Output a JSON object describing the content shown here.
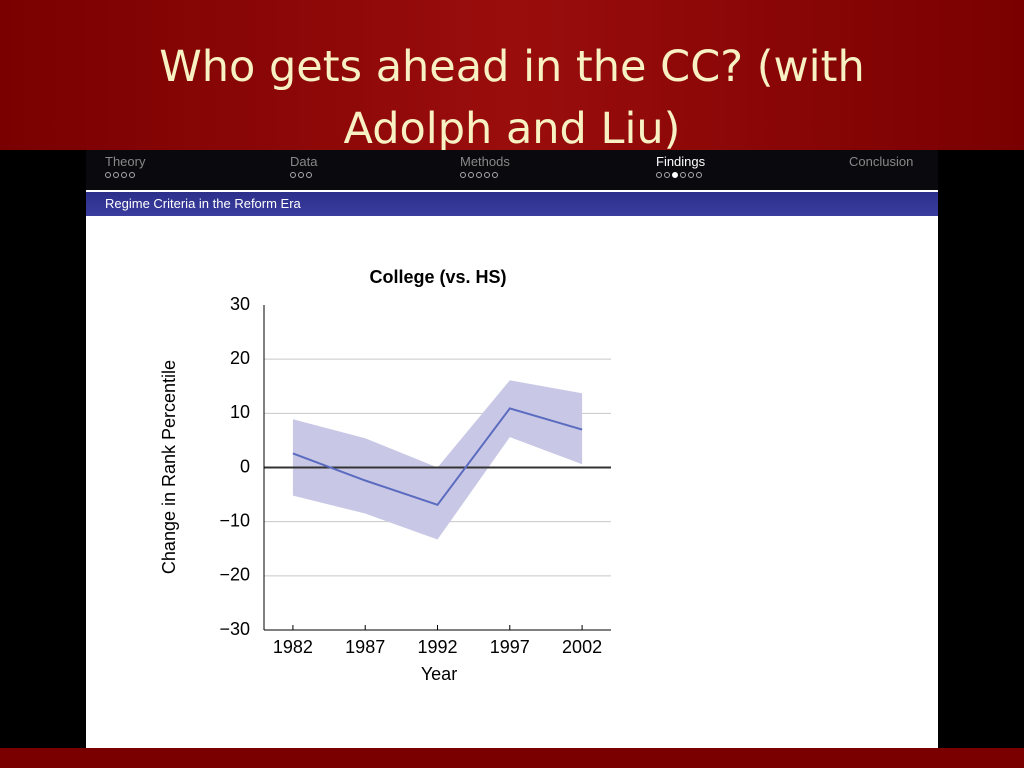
{
  "slide": {
    "title": "Who gets ahead in the CC? (with Adolph and Liu)"
  },
  "nav": {
    "sections": [
      {
        "name": "Theory",
        "dots": 4
      },
      {
        "name": "Data",
        "dots": 3
      },
      {
        "name": "Methods",
        "dots": 5
      },
      {
        "name": "Findings",
        "dots": 6
      },
      {
        "name": "Conclusion",
        "dots": 0
      }
    ],
    "active_section": 3,
    "active_dot": 2
  },
  "frame_title": "Regime Criteria in the Reform Era",
  "chart_data": {
    "type": "line",
    "title": "College (vs. HS)",
    "x_label": "Year",
    "y_label": "Change in Rank Percentile",
    "x": [
      1982,
      1987,
      1992,
      1997,
      2002
    ],
    "xlim": [
      1980,
      2004
    ],
    "xticks": [
      1982,
      1987,
      1992,
      1997,
      2002
    ],
    "ylim": [
      -30,
      30
    ],
    "yticks": [
      {
        "value": -30,
        "label": "−30"
      },
      {
        "value": -20,
        "label": "−20"
      },
      {
        "value": -10,
        "label": "−10"
      },
      0,
      10,
      20,
      30
    ],
    "grid": true,
    "zero_line": true,
    "series": [
      {
        "color": "#5b6bbf",
        "band_color": "#c8c8e6",
        "values": [
          2.6,
          -2.4,
          -6.9,
          10.9,
          7.0
        ],
        "upper": [
          8.9,
          5.4,
          0,
          16.1,
          13.7
        ],
        "lower": [
          -5.2,
          -8.5,
          -13.3,
          5.6,
          0.6
        ]
      }
    ]
  }
}
